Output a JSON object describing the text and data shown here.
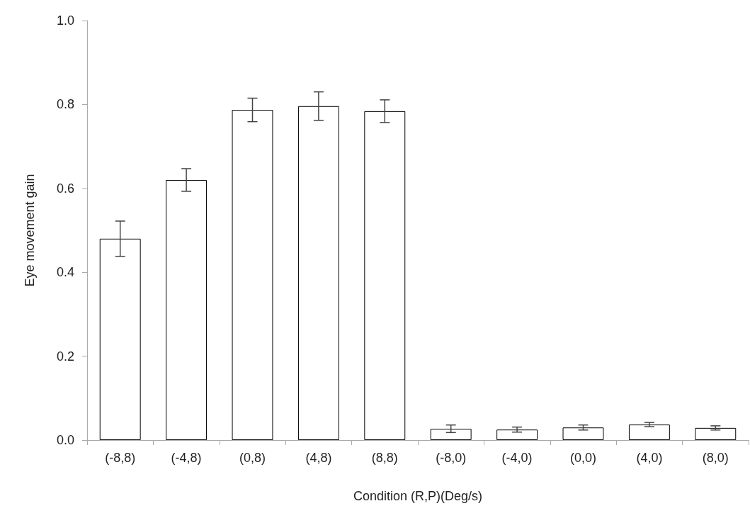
{
  "chart_data": {
    "type": "bar",
    "xlabel": "Condition (R,P)(Deg/s)",
    "ylabel": "Eye movement gain",
    "categories": [
      "(-8,8)",
      "(-4,8)",
      "(0,8)",
      "(4,8)",
      "(8,8)",
      "(-8,0)",
      "(-4,0)",
      "(0,0)",
      "(4,0)",
      "(8,0)"
    ],
    "values": [
      0.48,
      0.62,
      0.787,
      0.796,
      0.784,
      0.027,
      0.025,
      0.03,
      0.037,
      0.029
    ],
    "errors": [
      0.042,
      0.027,
      0.028,
      0.034,
      0.027,
      0.009,
      0.006,
      0.006,
      0.005,
      0.005
    ],
    "color": "#ffffff",
    "ylim": [
      0,
      1
    ],
    "yticks": [
      {
        "value": 0,
        "label": "0.0"
      },
      0.2,
      0.4,
      0.6,
      0.8,
      {
        "value": 1,
        "label": "1.0"
      }
    ],
    "grid": false
  }
}
